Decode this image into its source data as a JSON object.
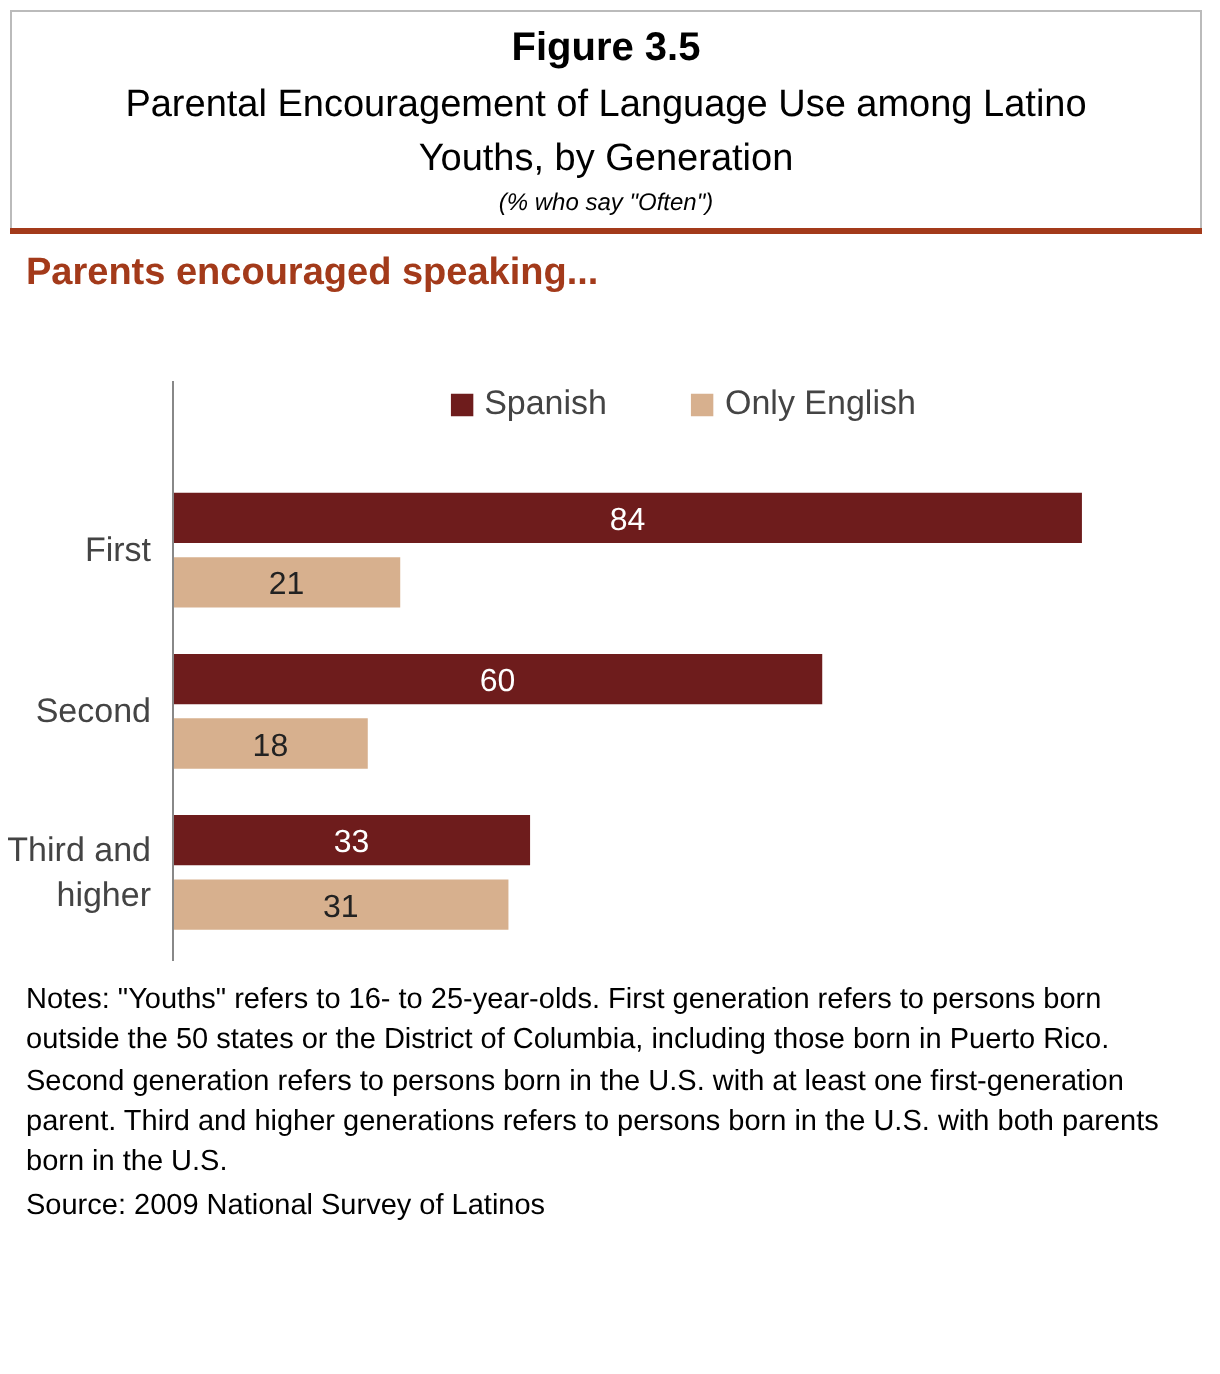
{
  "chart_data": {
    "type": "bar",
    "orientation": "horizontal",
    "title": "Figure 3.5",
    "subtitle": "Parental Encouragement of Language Use among Latino Youths, by Generation",
    "annotations": [
      "(% who say \"Often\")",
      "Parents encouraged speaking...",
      "Notes: \"Youths\" refers to 16- to 25-year-olds. First generation refers to persons born outside the 50 states or the District of Columbia, including those born in Puerto Rico. Second generation refers to persons born in the U.S. with at least one first-generation parent. Third and higher generations refers to persons born in the U.S. with both parents born in the U.S.",
      "Source: 2009 National Survey of Latinos"
    ],
    "categories": [
      "First",
      "Second",
      "Third and higher"
    ],
    "series": [
      {
        "name": "Spanish",
        "color": "#6e1c1c",
        "values": [
          84,
          60,
          33
        ]
      },
      {
        "name": "Only English",
        "color": "#d7b08e",
        "values": [
          21,
          18,
          31
        ]
      }
    ],
    "data_labels": true,
    "legend": "top",
    "grid": false
  }
}
